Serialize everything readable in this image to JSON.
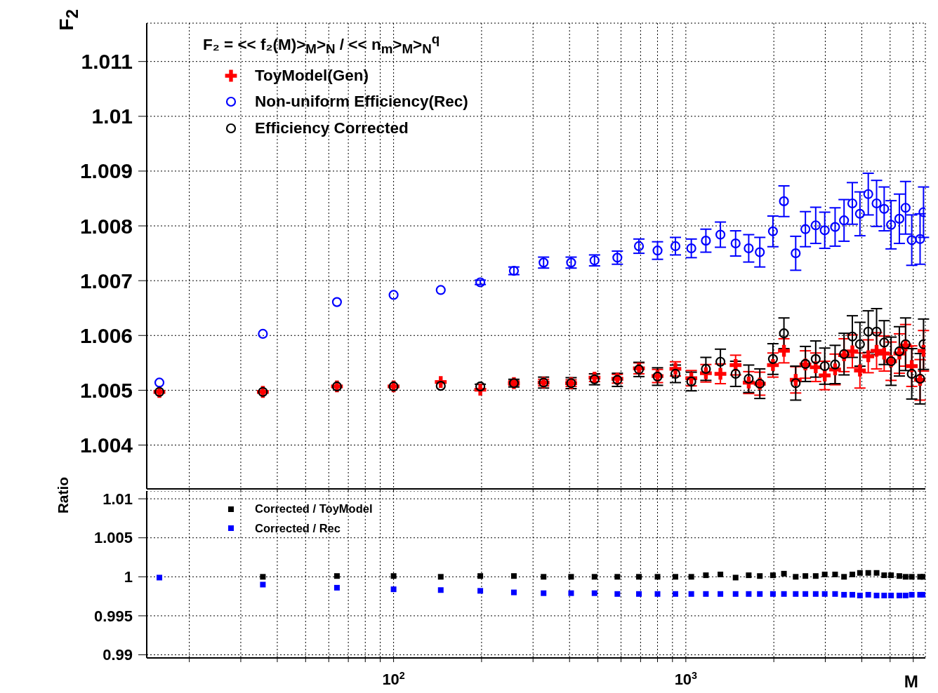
{
  "chart_data": [
    {
      "type": "scatter",
      "ylabel": "F$_{2}$",
      "legend_title": "F₂ = << f₂(M)>$_{M}$>$_{N}$ / << n$_{m}$>$_{M}$>$_{N}$$^{q}$",
      "legend": "top left",
      "grid": true,
      "log": "x",
      "tick_labels": "y",
      "x": [
        15.8,
        35.7,
        64,
        100,
        145,
        198,
        258,
        326,
        405,
        487,
        583,
        691,
        800,
        921,
        1044,
        1171,
        1313,
        1480,
        1641,
        1791,
        1986,
        2166,
        2376,
        2565,
        2782,
        2987,
        3241,
        3478,
        3713,
        3942,
        4209,
        4494,
        4771,
        5037,
        5377,
        5647,
        5929,
        6331,
        6505
      ],
      "xlim": [
        14.3,
        6600
      ],
      "xticks": [
        20,
        30,
        40,
        50,
        60,
        70,
        80,
        90,
        100,
        200,
        300,
        400,
        500,
        600,
        700,
        800,
        900,
        1000,
        2000,
        3000,
        4000,
        5000,
        6000
      ],
      "ylim": [
        1.0032,
        1.0117
      ],
      "yticks": [
        1.004,
        1.005,
        1.006,
        1.007,
        1.008,
        1.009,
        1.01,
        1.011
      ],
      "series": [
        {
          "name": "ToyModel(Gen)",
          "color": "#ff0000",
          "marker": "cross",
          "values": [
            1.00497,
            1.00497,
            1.00507,
            1.00507,
            1.00515,
            1.00501,
            1.00513,
            1.00514,
            1.00513,
            1.00523,
            1.00521,
            1.0054,
            1.00526,
            1.00539,
            1.00522,
            1.00531,
            1.0053,
            1.00546,
            1.00514,
            1.00512,
            1.00546,
            1.00572,
            1.00519,
            1.00547,
            1.00542,
            1.00527,
            1.00538,
            1.00564,
            1.00571,
            1.00536,
            1.00562,
            1.00572,
            1.00567,
            1.00553,
            1.00567,
            1.00582,
            1.00544,
            1.00519,
            1.00572
          ],
          "errors": [
            null,
            null,
            null,
            null,
            null,
            null,
            4e-05,
            6e-05,
            6e-05,
            7e-05,
            8e-05,
            0.0001,
            0.00012,
            0.00013,
            0.00014,
            0.00016,
            0.00018,
            0.00018,
            0.0002,
            0.00021,
            0.00022,
            0.00022,
            0.00024,
            0.00025,
            0.00026,
            0.00026,
            0.00028,
            0.0003,
            0.0003,
            0.00032,
            0.0003,
            0.00033,
            0.00032,
            0.00035,
            0.00036,
            0.00038,
            0.00037,
            0.00037,
            0.00037
          ]
        },
        {
          "name": "Non-uniform Efficiency(Rec)",
          "color": "#0000ff",
          "marker": "circle",
          "values": [
            1.00514,
            1.00603,
            1.00661,
            1.00674,
            1.00683,
            1.00697,
            1.00718,
            1.00733,
            1.00733,
            1.00737,
            1.00742,
            1.00763,
            1.00755,
            1.00763,
            1.00759,
            1.00773,
            1.00784,
            1.00768,
            1.00759,
            1.00752,
            1.0079,
            1.00845,
            1.0075,
            1.00794,
            1.00801,
            1.00792,
            1.00798,
            1.0081,
            1.00841,
            1.00822,
            1.00858,
            1.00841,
            1.00831,
            1.00802,
            1.00813,
            1.00833,
            1.00774,
            1.00776,
            1.00825
          ],
          "errors": [
            null,
            null,
            null,
            null,
            null,
            4e-05,
            7e-05,
            0.0001,
            0.0001,
            0.0001,
            0.00012,
            0.00013,
            0.00016,
            0.00016,
            0.00017,
            0.00021,
            0.00023,
            0.00023,
            0.00025,
            0.00027,
            0.00028,
            0.00028,
            0.00031,
            0.00032,
            0.00033,
            0.00033,
            0.00035,
            0.00038,
            0.00038,
            0.0004,
            0.00038,
            0.00042,
            0.0004,
            0.00044,
            0.00045,
            0.00048,
            0.00046,
            0.00046,
            0.00046
          ]
        },
        {
          "name": "Efficiency Corrected",
          "color": "#000000",
          "marker": "circle",
          "values": [
            1.00497,
            1.00497,
            1.00507,
            1.00507,
            1.00508,
            1.00507,
            1.00513,
            1.00514,
            1.00513,
            1.0052,
            1.00519,
            1.00538,
            1.00525,
            1.0053,
            1.00516,
            1.00539,
            1.00552,
            1.0053,
            1.00521,
            1.00512,
            1.00557,
            1.00604,
            1.00513,
            1.00548,
            1.00557,
            1.00544,
            1.00547,
            1.00566,
            1.00598,
            1.00584,
            1.00607,
            1.00607,
            1.00587,
            1.00553,
            1.00571,
            1.00584,
            1.0053,
            1.00521,
            1.00584
          ],
          "errors": [
            null,
            null,
            null,
            null,
            null,
            4e-05,
            7e-05,
            0.0001,
            0.0001,
            0.0001,
            0.00012,
            0.00013,
            0.00016,
            0.00016,
            0.00017,
            0.00021,
            0.00023,
            0.00023,
            0.00025,
            0.00027,
            0.00028,
            0.00028,
            0.00031,
            0.00032,
            0.00033,
            0.00033,
            0.00035,
            0.00038,
            0.00038,
            0.0004,
            0.00038,
            0.00042,
            0.0004,
            0.00044,
            0.00045,
            0.00048,
            0.00046,
            0.00046,
            0.00046
          ]
        }
      ]
    },
    {
      "type": "scatter",
      "ylabel": "Ratio",
      "xlabel": "M",
      "legend": "top left",
      "grid": true,
      "log": "x",
      "x": [
        15.8,
        35.7,
        64,
        100,
        145,
        198,
        258,
        326,
        405,
        487,
        583,
        691,
        800,
        921,
        1044,
        1171,
        1313,
        1480,
        1641,
        1791,
        1986,
        2166,
        2376,
        2565,
        2782,
        2987,
        3241,
        3478,
        3713,
        3942,
        4209,
        4494,
        4771,
        5037,
        5377,
        5647,
        5929,
        6331,
        6505
      ],
      "xlim": [
        14.3,
        6600
      ],
      "xticks": [
        {
          "value": 20,
          "label": null
        },
        {
          "value": 30,
          "label": null
        },
        {
          "value": 40,
          "label": null
        },
        {
          "value": 50,
          "label": null
        },
        {
          "value": 60,
          "label": null
        },
        {
          "value": 70,
          "label": null
        },
        {
          "value": 80,
          "label": null
        },
        {
          "value": 90,
          "label": null
        },
        {
          "value": 100,
          "label": "10$^{2}$"
        },
        {
          "value": 200,
          "label": null
        },
        {
          "value": 300,
          "label": null
        },
        {
          "value": 400,
          "label": null
        },
        {
          "value": 500,
          "label": null
        },
        {
          "value": 600,
          "label": null
        },
        {
          "value": 700,
          "label": null
        },
        {
          "value": 800,
          "label": null
        },
        {
          "value": 900,
          "label": null
        },
        {
          "value": 1000,
          "label": "10$^{3}$"
        },
        {
          "value": 2000,
          "label": null
        },
        {
          "value": 3000,
          "label": null
        },
        {
          "value": 4000,
          "label": null
        },
        {
          "value": 5000,
          "label": null
        },
        {
          "value": 6000,
          "label": null
        }
      ],
      "ylim": [
        0.9896,
        1.011
      ],
      "yticks": [
        0.99,
        0.995,
        1,
        1.005,
        1.01
      ],
      "series": [
        {
          "name": "Corrected / ToyModel",
          "color": "#000000",
          "marker": "square",
          "values": [
            null,
            1.0,
            1.0001,
            1.0001,
            1.0,
            1.0001,
            1.0001,
            1.0,
            1.0,
            1.0,
            1.0,
            1.0,
            1.0,
            1.0,
            1.0,
            1.0002,
            1.0003,
            0.9999,
            1.0002,
            1.0001,
            1.0002,
            1.0004,
            1.0,
            1.0001,
            1.0001,
            1.0003,
            1.0003,
            1.0,
            1.0003,
            1.0005,
            1.0005,
            1.0005,
            1.0002,
            1.0002,
            1.0001,
            1.0,
            1.0,
            1.0,
            1.0
          ]
        },
        {
          "name": "Corrected / Rec",
          "color": "#0000ff",
          "marker": "square",
          "values": [
            0.9999,
            0.999,
            0.9986,
            0.9984,
            0.9983,
            0.9982,
            0.998,
            0.9979,
            0.9979,
            0.9979,
            0.9978,
            0.9978,
            0.9978,
            0.9978,
            0.9978,
            0.9978,
            0.9978,
            0.9978,
            0.9978,
            0.9978,
            0.9978,
            0.9978,
            0.9978,
            0.9978,
            0.9978,
            0.9978,
            0.9978,
            0.9977,
            0.9977,
            0.9976,
            0.9977,
            0.9976,
            0.9976,
            0.9976,
            0.9976,
            0.9976,
            0.9977,
            0.9977,
            0.9977
          ]
        }
      ]
    }
  ]
}
